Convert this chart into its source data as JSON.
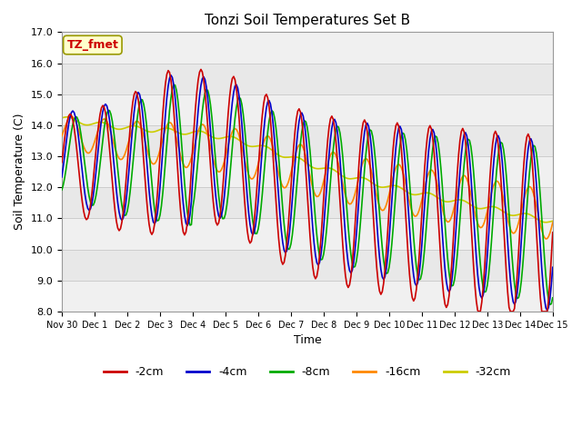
{
  "title": "Tonzi Soil Temperatures Set B",
  "xlabel": "Time",
  "ylabel": "Soil Temperature (C)",
  "ylim": [
    8.0,
    17.0
  ],
  "yticks": [
    8.0,
    9.0,
    10.0,
    11.0,
    12.0,
    13.0,
    14.0,
    15.0,
    16.0,
    17.0
  ],
  "annotation_text": "TZ_fmet",
  "annotation_color": "#cc0000",
  "annotation_bg": "#ffffcc",
  "annotation_border": "#999900",
  "series_colors": {
    "-2cm": "#cc0000",
    "-4cm": "#0000cc",
    "-8cm": "#00aa00",
    "-16cm": "#ff8800",
    "-32cm": "#cccc00"
  },
  "bg_color": "#e8e8e8",
  "stripe_color": "#f0f0f0",
  "grid_color": "#cccccc",
  "tick_labels": [
    "Nov 30",
    "Dec 1",
    "Dec 2",
    "Dec 3",
    "Dec 4",
    "Dec 5",
    "Dec 6",
    "Dec 7",
    "Dec 8",
    "Dec 9",
    "Dec 10",
    "Dec 11",
    "Dec 12",
    "Dec 13",
    "Dec 14",
    "Dec 15"
  ]
}
